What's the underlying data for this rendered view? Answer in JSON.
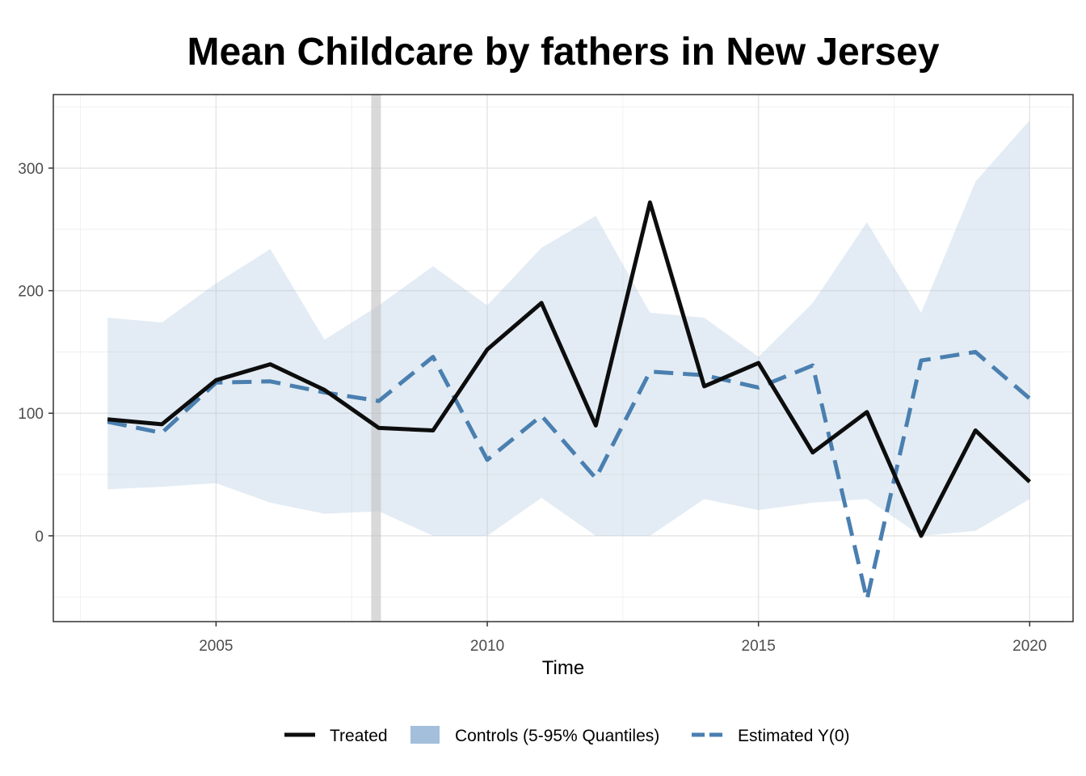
{
  "chart_data": {
    "type": "line",
    "title": "Mean Childcare by fathers in New Jersey",
    "xlabel": "Time",
    "ylabel": "",
    "xlim": [
      2002.0,
      2020.8
    ],
    "ylim": [
      -70,
      360
    ],
    "x_ticks": [
      2005,
      2010,
      2015,
      2020
    ],
    "y_ticks": [
      0,
      100,
      200,
      300
    ],
    "grid": true,
    "legend_position": "bottom",
    "treatment_time": 2007.95,
    "x": [
      2003,
      2004,
      2005,
      2006,
      2007,
      2008,
      2009,
      2010,
      2011,
      2012,
      2013,
      2014,
      2015,
      2016,
      2017,
      2018,
      2019,
      2020
    ],
    "series": [
      {
        "name": "Treated",
        "kind": "line",
        "color": "#0d0d0d",
        "values": [
          95,
          91,
          127,
          140,
          119,
          88,
          86,
          152,
          190,
          90,
          272,
          122,
          141,
          68,
          101,
          0,
          86,
          44
        ]
      },
      {
        "name": "Controls (5-95% Quantiles)",
        "kind": "band",
        "color": "#a3bfdb",
        "lower": [
          38,
          40,
          43,
          27,
          18,
          20,
          0,
          0,
          31,
          0,
          0,
          30,
          21,
          27,
          30,
          0,
          4,
          30
        ],
        "upper": [
          178,
          174,
          206,
          234,
          160,
          188,
          220,
          188,
          235,
          261,
          182,
          178,
          146,
          190,
          256,
          182,
          289,
          339
        ]
      },
      {
        "name": "Estimated Y(0)",
        "kind": "dashed",
        "color": "#4a7fb0",
        "values": [
          93,
          84,
          125,
          126,
          117,
          110,
          146,
          62,
          98,
          47,
          134,
          131,
          121,
          139,
          -52,
          143,
          150,
          112
        ]
      }
    ]
  }
}
